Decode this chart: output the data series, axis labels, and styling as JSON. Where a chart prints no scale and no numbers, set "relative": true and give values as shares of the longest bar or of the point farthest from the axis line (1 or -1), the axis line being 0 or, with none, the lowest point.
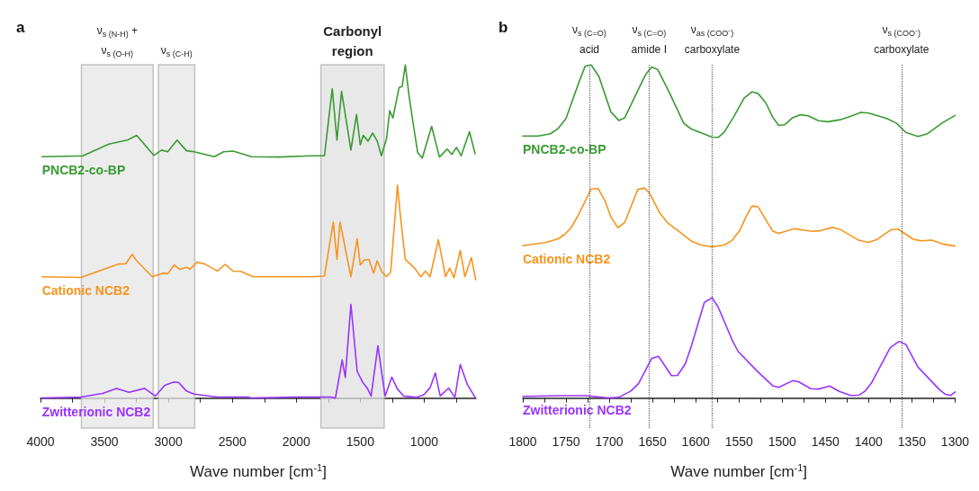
{
  "chart_data": [
    {
      "type": "line",
      "relative": true,
      "marker": "none",
      "line_style": "solid",
      "xlabel": "Wave number [cm$^{-1}$]",
      "annotations": [
        "a"
      ],
      "xlim": [
        4000,
        595
      ],
      "xticks": [
        4000,
        {
          "value": 3750,
          "label": null
        },
        3500,
        {
          "value": 3250,
          "label": null
        },
        3000,
        {
          "value": 2750,
          "label": null
        },
        2500,
        {
          "value": 2250,
          "label": null
        },
        2000,
        {
          "value": 1750,
          "label": null
        },
        1500,
        {
          "value": 1250,
          "label": null
        },
        1000,
        {
          "value": 750,
          "label": null
        }
      ],
      "bands": [
        {
          "axis": "x",
          "from": 3680,
          "to": 3119,
          "label": "ν$_{s (N-H)}$ +\nν$_{s (O-H)}$",
          "color": "#e6e6e6"
        },
        {
          "axis": "x",
          "from": 3078,
          "to": 2794,
          "label": "ν$_{s (C-H)}$",
          "color": "#e6e6e6"
        },
        {
          "axis": "x",
          "from": 1808,
          "to": 1313,
          "label": "Carbonyl\nregion",
          "color": "#e0e0e0"
        }
      ],
      "series": [
        {
          "name": "PNCB2-co-BP",
          "color": "#3a9a32",
          "x": [
            3988,
            3709,
            3672,
            3466,
            3320,
            3248,
            3114,
            3053,
            3005,
            2932,
            2859,
            2799,
            2641,
            2568,
            2495,
            2350,
            2131,
            1889,
            1780,
            1719,
            1682,
            1646,
            1573,
            1529,
            1500,
            1476,
            1439,
            1403,
            1367,
            1335,
            1294,
            1270,
            1245,
            1197,
            1172,
            1148,
            1117,
            1088,
            1051,
            1015,
            942,
            881,
            820,
            784,
            748,
            711,
            646,
            602
          ],
          "values": [
            0.724,
            0.726,
            0.726,
            0.762,
            0.774,
            0.788,
            0.728,
            0.744,
            0.739,
            0.774,
            0.742,
            0.739,
            0.724,
            0.739,
            0.741,
            0.724,
            0.723,
            0.727,
            0.727,
            0.928,
            0.774,
            0.92,
            0.744,
            0.851,
            0.76,
            0.788,
            0.771,
            0.795,
            0.771,
            0.727,
            0.779,
            0.862,
            0.84,
            0.931,
            0.935,
            1.0,
            0.903,
            0.828,
            0.736,
            0.72,
            0.815,
            0.723,
            0.747,
            0.731,
            0.752,
            0.727,
            0.799,
            0.733
          ]
        },
        {
          "name": "Cationic NCB2",
          "color": "#f7941d",
          "x": [
            3988,
            3684,
            3393,
            3333,
            3284,
            3248,
            3126,
            3041,
            3005,
            2956,
            2908,
            2859,
            2830,
            2774,
            2714,
            2617,
            2556,
            2495,
            2435,
            2337,
            1889,
            1780,
            1711,
            1682,
            1658,
            1573,
            1524,
            1500,
            1471,
            1432,
            1396,
            1367,
            1330,
            1294,
            1262,
            1209,
            1185,
            1148,
            1075,
            1027,
            990,
            954,
            889,
            857,
            833,
            801,
            767,
            718,
            682,
            631,
            597
          ],
          "values": [
            0.364,
            0.362,
            0.402,
            0.403,
            0.431,
            0.412,
            0.364,
            0.375,
            0.373,
            0.399,
            0.386,
            0.392,
            0.387,
            0.408,
            0.402,
            0.381,
            0.401,
            0.381,
            0.38,
            0.364,
            0.364,
            0.366,
            0.528,
            0.416,
            0.528,
            0.364,
            0.478,
            0.399,
            0.414,
            0.416,
            0.375,
            0.412,
            0.378,
            0.364,
            0.378,
            0.638,
            0.543,
            0.416,
            0.39,
            0.364,
            0.381,
            0.364,
            0.475,
            0.412,
            0.364,
            0.39,
            0.361,
            0.443,
            0.364,
            0.421,
            0.355
          ]
        },
        {
          "name": "Zwitterionic NCB2",
          "color": "#9933ff",
          "x": [
            3988,
            3684,
            3515,
            3405,
            3308,
            3187,
            3102,
            3029,
            2956,
            2920,
            2859,
            2799,
            2617,
            2374,
            2350,
            2010,
            1731,
            1694,
            1641,
            1617,
            1573,
            1524,
            1481,
            1447,
            1415,
            1362,
            1306,
            1253,
            1209,
            1160,
            1063,
            1003,
            954,
            913,
            875,
            809,
            760,
            718,
            663,
            602
          ],
          "values": [
            0.0,
            0.003,
            0.014,
            0.029,
            0.017,
            0.029,
            0.006,
            0.038,
            0.048,
            0.047,
            0.021,
            0.012,
            0.003,
            0.003,
            0.0,
            0.003,
            0.003,
            0.0,
            0.114,
            0.062,
            0.281,
            0.08,
            0.047,
            0.031,
            0.006,
            0.157,
            0.006,
            0.063,
            0.027,
            0.006,
            0.002,
            0.01,
            0.031,
            0.075,
            0.006,
            0.03,
            0.002,
            0.101,
            0.041,
            0.002
          ]
        }
      ]
    },
    {
      "type": "line",
      "relative": true,
      "marker": "none",
      "line_style": "solid",
      "xlabel": "Wave number [cm$^{-1}$]",
      "annotations": [
        "b"
      ],
      "xlim": [
        1800,
        1300
      ],
      "xticks": [
        1800,
        {
          "value": 1775,
          "label": null
        },
        1750,
        {
          "value": 1725,
          "label": null
        },
        1700,
        {
          "value": 1675,
          "label": null
        },
        1650,
        {
          "value": 1625,
          "label": null
        },
        1600,
        {
          "value": 1575,
          "label": null
        },
        1550,
        {
          "value": 1525,
          "label": null
        },
        1500,
        {
          "value": 1475,
          "label": null
        },
        1450,
        {
          "value": 1425,
          "label": null
        },
        1400,
        {
          "value": 1375,
          "label": null
        },
        1350,
        {
          "value": 1325,
          "label": null
        },
        1300
      ],
      "ref_lines": [
        {
          "axis": "x",
          "value": 1723,
          "label": "ν$_{s (C=O)}$\nacid",
          "color": "#666666",
          "line_style": "dotted"
        },
        {
          "axis": "x",
          "value": 1654,
          "label": "ν$_{s (C=O)}$\namide I",
          "color": "#666666",
          "line_style": "dotted"
        },
        {
          "axis": "x",
          "value": 1581,
          "label": "ν$_{as (COO⁻)}$\ncarboxylate",
          "color": "#666666",
          "line_style": "dotted"
        },
        {
          "axis": "x",
          "value": 1362,
          "label": "ν$_{s (COO⁻)}$\ncarboxylate",
          "color": "#666666",
          "line_style": "dotted"
        }
      ],
      "series": [
        {
          "name": "PNCB2-co-BP",
          "color": "#3a9a32",
          "x": [
            1800,
            1782,
            1768,
            1759,
            1750,
            1735,
            1728,
            1721,
            1712,
            1698,
            1689,
            1682,
            1666,
            1658,
            1651,
            1644,
            1630,
            1614,
            1605,
            1581,
            1574,
            1567,
            1556,
            1544,
            1535,
            1528,
            1519,
            1511,
            1504,
            1497,
            1488,
            1479,
            1470,
            1458,
            1447,
            1433,
            1420,
            1409,
            1400,
            1379,
            1368,
            1357,
            1343,
            1332,
            1314,
            1300
          ],
          "values": [
            0.786,
            0.786,
            0.793,
            0.809,
            0.839,
            0.948,
            0.995,
            1.0,
            0.965,
            0.858,
            0.833,
            0.841,
            0.928,
            0.97,
            0.993,
            0.986,
            0.914,
            0.825,
            0.807,
            0.783,
            0.782,
            0.798,
            0.844,
            0.9,
            0.919,
            0.914,
            0.886,
            0.843,
            0.818,
            0.82,
            0.841,
            0.85,
            0.847,
            0.832,
            0.829,
            0.835,
            0.846,
            0.857,
            0.855,
            0.839,
            0.825,
            0.797,
            0.785,
            0.793,
            0.827,
            0.848
          ]
        },
        {
          "name": "Cationic NCB2",
          "color": "#f7941d",
          "x": [
            1800,
            1773,
            1759,
            1752,
            1744,
            1735,
            1721,
            1713,
            1705,
            1698,
            1690,
            1682,
            1667,
            1659,
            1653,
            1642,
            1633,
            1619,
            1605,
            1594,
            1581,
            1567,
            1558,
            1549,
            1542,
            1535,
            1528,
            1511,
            1504,
            1486,
            1465,
            1456,
            1442,
            1433,
            1411,
            1400,
            1390,
            1374,
            1366,
            1348,
            1339,
            1327,
            1314,
            1300
          ],
          "values": [
            0.457,
            0.467,
            0.478,
            0.49,
            0.511,
            0.553,
            0.627,
            0.629,
            0.592,
            0.543,
            0.511,
            0.527,
            0.626,
            0.63,
            0.613,
            0.557,
            0.527,
            0.499,
            0.471,
            0.459,
            0.454,
            0.459,
            0.473,
            0.503,
            0.543,
            0.576,
            0.574,
            0.501,
            0.494,
            0.508,
            0.5,
            0.502,
            0.512,
            0.506,
            0.473,
            0.467,
            0.476,
            0.505,
            0.507,
            0.476,
            0.472,
            0.474,
            0.462,
            0.456
          ]
        },
        {
          "name": "Zwitterionic NCB2",
          "color": "#9933ff",
          "x": [
            1800,
            1755,
            1727,
            1701,
            1689,
            1675,
            1666,
            1651,
            1643,
            1628,
            1621,
            1612,
            1605,
            1590,
            1581,
            1574,
            1558,
            1551,
            1529,
            1511,
            1504,
            1488,
            1481,
            1467,
            1458,
            1445,
            1434,
            1420,
            1411,
            1404,
            1397,
            1375,
            1365,
            1357,
            1343,
            1318,
            1311,
            1305,
            1300
          ],
          "values": [
            0.005,
            0.007,
            0.007,
            0.0,
            0.002,
            0.021,
            0.044,
            0.119,
            0.125,
            0.067,
            0.068,
            0.103,
            0.156,
            0.287,
            0.301,
            0.273,
            0.175,
            0.14,
            0.081,
            0.037,
            0.032,
            0.052,
            0.049,
            0.028,
            0.027,
            0.036,
            0.02,
            0.007,
            0.009,
            0.021,
            0.044,
            0.151,
            0.17,
            0.161,
            0.093,
            0.025,
            0.011,
            0.008,
            0.018
          ]
        }
      ]
    }
  ]
}
